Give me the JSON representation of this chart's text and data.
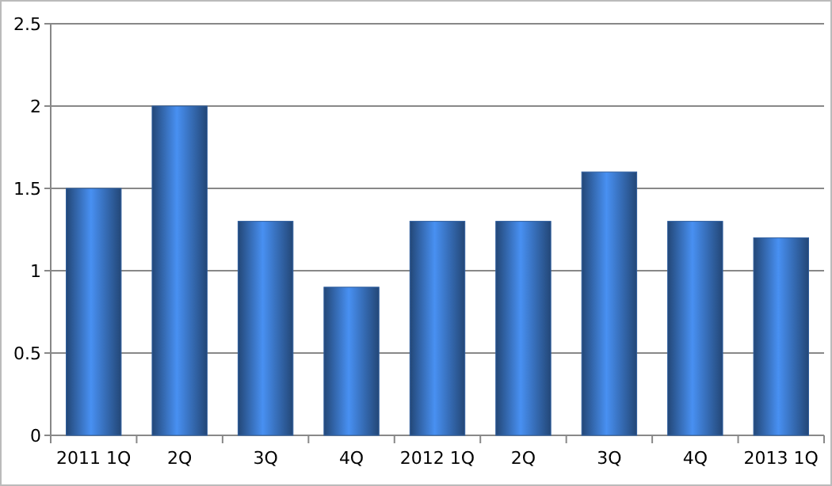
{
  "chart_data": {
    "type": "bar",
    "categories": [
      "2011 1Q",
      "2Q",
      "3Q",
      "4Q",
      "2012 1Q",
      "2Q",
      "3Q",
      "4Q",
      "2013 1Q"
    ],
    "values": [
      1.5,
      2,
      1.3,
      0.9,
      1.3,
      1.3,
      1.6,
      1.3,
      1.2
    ],
    "color": "#2f5e9e",
    "ylim": [
      0,
      2.5
    ],
    "yticks": [
      0,
      0.5,
      1,
      1.5,
      2,
      2.5
    ],
    "grid": "y"
  }
}
